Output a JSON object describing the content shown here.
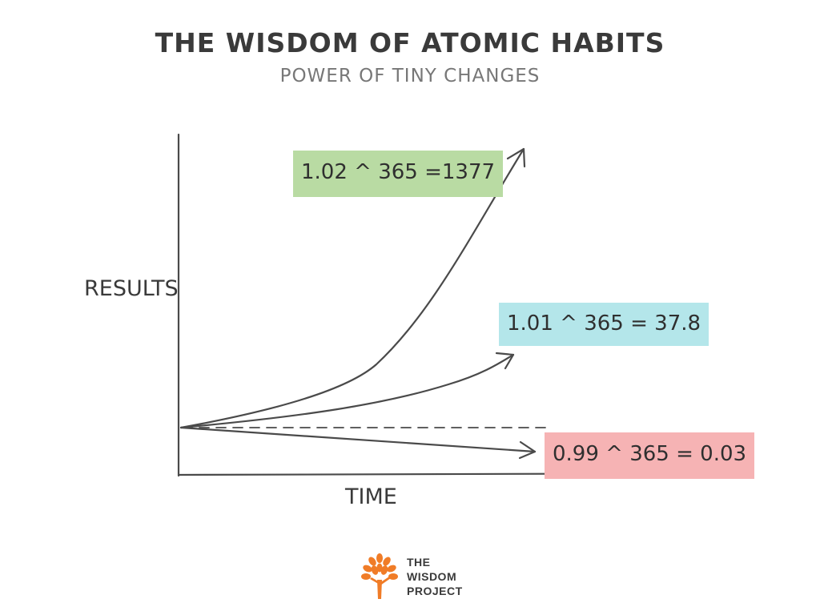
{
  "header": {
    "title": "THE WISDOM OF ATOMIC HABITS",
    "subtitle": "POWER OF TINY CHANGES"
  },
  "axes": {
    "y_label": "RESULTS",
    "x_label": "TIME"
  },
  "curves": [
    {
      "label": "1.02 ^ 365 =1377",
      "color": "#b9dba3",
      "shape": "steep-exponential"
    },
    {
      "label": "1.01 ^ 365 = 37.8",
      "color": "#b4e6ea",
      "shape": "gentle-exponential"
    },
    {
      "label": "0.99 ^ 365 = 0.03",
      "color": "#f6b3b4",
      "shape": "decline"
    }
  ],
  "baseline": {
    "style": "dashed"
  },
  "logo": {
    "icon": "tree-icon",
    "lines": [
      "THE",
      "WISDOM",
      "PROJECT"
    ],
    "color": "#f07c27"
  }
}
